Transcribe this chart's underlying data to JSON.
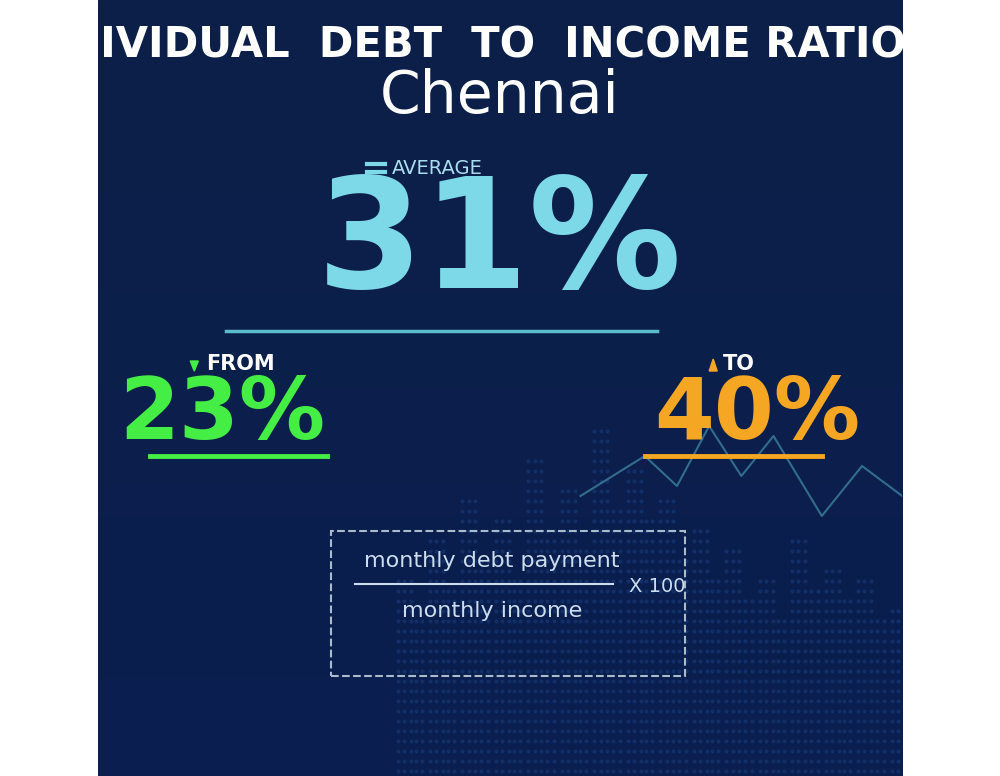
{
  "title_line1": "INDIVIDUAL  DEBT  TO  INCOME RATIO  IN",
  "title_line2": "Chennai",
  "average_label": "AVERAGE",
  "average_value": "31%",
  "from_label": "FROM",
  "from_value": "23%",
  "to_label": "TO",
  "to_value": "40%",
  "formula_numerator": "monthly debt payment",
  "formula_denominator": "monthly income",
  "formula_multiplier": "X 100",
  "bg_color_top": "#0d2048",
  "bg_color_bottom": "#0a3060",
  "title_color": "#ffffff",
  "city_color": "#ffffff",
  "average_text_color": "#aaddee",
  "average_value_color": "#7dd8e8",
  "from_value_color": "#44ee44",
  "to_value_color": "#f5a623",
  "label_color": "#ffffff",
  "line_avg_color": "#5bbccc",
  "line_from_color": "#44ee44",
  "line_to_color": "#f5a623",
  "formula_text_color": "#ccddee",
  "dashed_box_color": "#aabbcc"
}
